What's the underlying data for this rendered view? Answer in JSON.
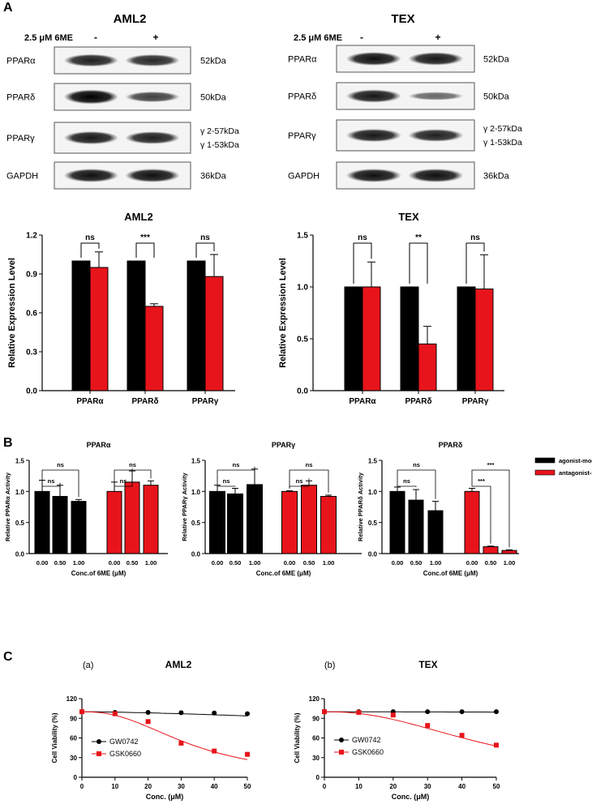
{
  "panels": {
    "A": "A",
    "B": "B",
    "C": "C"
  },
  "western_blots": [
    {
      "title": "AML2",
      "treatment": "2.5 μM 6ME",
      "lanes": [
        "-",
        "+"
      ],
      "rows": [
        {
          "label": "PPARα",
          "size": [
            "52kDa"
          ],
          "band_intensity": [
            0.8,
            0.75
          ]
        },
        {
          "label": "PPARδ",
          "size": [
            "50kDa"
          ],
          "band_intensity": [
            1.0,
            0.6
          ]
        },
        {
          "label": "PPARγ",
          "size": [
            "γ 2-57kDa",
            "γ 1-53kDa"
          ],
          "band_intensity": [
            0.85,
            0.8
          ]
        },
        {
          "label": "GAPDH",
          "size": [
            "36kDa"
          ],
          "band_intensity": [
            0.9,
            0.9
          ]
        }
      ]
    },
    {
      "title": "TEX",
      "treatment": "2.5 μM 6ME",
      "lanes": [
        "-",
        "+"
      ],
      "rows": [
        {
          "label": "PPARα",
          "size": [
            "52kDa"
          ],
          "band_intensity": [
            0.9,
            0.85
          ]
        },
        {
          "label": "PPARδ",
          "size": [
            "50kDa"
          ],
          "band_intensity": [
            0.85,
            0.35
          ]
        },
        {
          "label": "PPARγ",
          "size": [
            "γ 2-57kDa",
            "γ 1-53kDa"
          ],
          "band_intensity": [
            0.85,
            0.8
          ]
        },
        {
          "label": "GAPDH",
          "size": [
            "36kDa"
          ],
          "band_intensity": [
            0.9,
            0.9
          ]
        }
      ]
    }
  ],
  "chart_data": [
    {
      "type": "bar",
      "title": "AML2",
      "ylabel": "Relative Expression Level",
      "categories": [
        "PPARα",
        "PPARδ",
        "PPARγ"
      ],
      "series": [
        {
          "values": [
            1.0,
            1.0,
            1.0
          ],
          "errors": [
            0,
            0,
            0
          ],
          "color": "#000000"
        },
        {
          "values": [
            0.95,
            0.65,
            0.88
          ],
          "errors": [
            0.12,
            0.02,
            0.17
          ],
          "color": "#e8141b"
        }
      ],
      "ylim": [
        0,
        1.2
      ],
      "yticks": [
        "0.0",
        "0.3",
        "0.6",
        "0.9",
        "1.2"
      ],
      "significance": [
        "ns",
        "***",
        "ns"
      ]
    },
    {
      "type": "bar",
      "title": "TEX",
      "ylabel": "Relative Expression Level",
      "categories": [
        "PPARα",
        "PPARδ",
        "PPARγ"
      ],
      "series": [
        {
          "values": [
            1.0,
            1.0,
            1.0
          ],
          "errors": [
            0,
            0,
            0
          ],
          "color": "#000000"
        },
        {
          "values": [
            1.0,
            0.45,
            0.98
          ],
          "errors": [
            0.24,
            0.17,
            0.33
          ],
          "color": "#e8141b"
        }
      ],
      "ylim": [
        0,
        1.5
      ],
      "yticks": [
        "0.0",
        "0.5",
        "1.0",
        "1.5"
      ],
      "significance": [
        "ns",
        "**",
        "ns"
      ]
    },
    {
      "type": "bar",
      "title": "PPARα",
      "ylabel": "Relative PPARα Activity",
      "xlabel": "Conc.of 6ME (μM)",
      "categories": [
        "0.00",
        "0.50",
        "1.00"
      ],
      "series": [
        {
          "name": "agonist-mode",
          "values": [
            1.0,
            0.92,
            0.84
          ],
          "errors": [
            0.18,
            0.18,
            0.03
          ],
          "color": "#000000"
        },
        {
          "name": "antagonist-mode",
          "values": [
            1.0,
            1.15,
            1.1
          ],
          "errors": [
            0.15,
            0.18,
            0.07
          ],
          "color": "#e8141b"
        }
      ],
      "ylim": [
        0,
        1.5
      ],
      "yticks": [
        "0.0",
        "0.5",
        "1.0",
        "1.5"
      ],
      "significance": [
        "ns",
        "ns",
        "ns",
        "ns"
      ]
    },
    {
      "type": "bar",
      "title": "PPARγ",
      "ylabel": "Relative PPARγ Activity",
      "xlabel": "Conc.of 6ME (μM)",
      "categories": [
        "0.00",
        "0.50",
        "1.00"
      ],
      "series": [
        {
          "name": "agonist-mode",
          "values": [
            1.0,
            0.96,
            1.11
          ],
          "errors": [
            0.1,
            0.09,
            0.25
          ],
          "color": "#000000"
        },
        {
          "name": "antagonist-mode",
          "values": [
            1.0,
            1.1,
            0.92
          ],
          "errors": [
            0.01,
            0.07,
            0.02
          ],
          "color": "#e8141b"
        }
      ],
      "ylim": [
        0,
        1.5
      ],
      "yticks": [
        "0.0",
        "0.5",
        "1.0",
        "1.5"
      ],
      "significance": [
        "ns",
        "ns",
        "ns",
        "ns"
      ]
    },
    {
      "type": "bar",
      "title": "PPARδ",
      "ylabel": "Relative PPARδ Activity",
      "xlabel": "Conc.of 6ME (μM)",
      "categories": [
        "0.00",
        "0.50",
        "1.00"
      ],
      "series": [
        {
          "name": "agonist-mode",
          "values": [
            1.0,
            0.86,
            0.69
          ],
          "errors": [
            0.07,
            0.17,
            0.15
          ],
          "color": "#000000"
        },
        {
          "name": "antagonist-mode",
          "values": [
            1.0,
            0.11,
            0.05
          ],
          "errors": [
            0.05,
            0.01,
            0.01
          ],
          "color": "#e8141b"
        }
      ],
      "ylim": [
        0,
        1.5
      ],
      "yticks": [
        "0.0",
        "0.5",
        "1.0",
        "1.5"
      ],
      "significance": [
        "ns",
        "ns",
        "***",
        "***"
      ],
      "legend": {
        "placement": "right",
        "entries": [
          "agonist-mode",
          "antagonist-mode"
        ]
      }
    },
    {
      "type": "scatter",
      "label": "(a)",
      "title": "AML2",
      "xlabel": "Conc. (μM)",
      "ylabel": "Cell Viability (%)",
      "xlim": [
        0,
        50
      ],
      "ylim": [
        0,
        120
      ],
      "xticks": [
        "0",
        "10",
        "20",
        "30",
        "40",
        "50"
      ],
      "yticks": [
        "0",
        "30",
        "60",
        "90",
        "120"
      ],
      "series": [
        {
          "name": "GW0742",
          "marker": "circle",
          "color": "#000000",
          "x": [
            0,
            10,
            20,
            30,
            40,
            50
          ],
          "y": [
            100,
            99,
            99,
            98.5,
            98,
            97
          ],
          "fit": {
            "ic50": 300,
            "hill": 1.5
          }
        },
        {
          "name": "GSK0660",
          "marker": "square",
          "color": "#e8141b",
          "x": [
            0,
            10,
            20,
            30,
            40,
            50
          ],
          "y": [
            100,
            97,
            85,
            52,
            40,
            35
          ],
          "fit": {
            "ic50": 33,
            "hill": 2.4
          }
        }
      ],
      "legend": {
        "placement": "bottom-left"
      }
    },
    {
      "type": "scatter",
      "label": "(b)",
      "title": "TEX",
      "xlabel": "Conc. (μM)",
      "ylabel": "Cell Viability (%)",
      "xlim": [
        0,
        50
      ],
      "ylim": [
        0,
        120
      ],
      "xticks": [
        "0",
        "10",
        "20",
        "30",
        "40",
        "50"
      ],
      "yticks": [
        "0",
        "30",
        "60",
        "90",
        "120"
      ],
      "series": [
        {
          "name": "GW0742",
          "marker": "circle",
          "color": "#000000",
          "x": [
            0,
            10,
            20,
            30,
            40,
            50
          ],
          "y": [
            100,
            100,
            100,
            100,
            100,
            100
          ],
          "fit": {
            "ic50": 10000,
            "hill": 1
          }
        },
        {
          "name": "GSK0660",
          "marker": "square",
          "color": "#e8141b",
          "x": [
            0,
            10,
            20,
            30,
            40,
            50
          ],
          "y": [
            100,
            99,
            95,
            79,
            64,
            49
          ],
          "fit": {
            "ic50": 48,
            "hill": 2.3
          }
        }
      ],
      "legend": {
        "placement": "bottom-left"
      }
    }
  ]
}
